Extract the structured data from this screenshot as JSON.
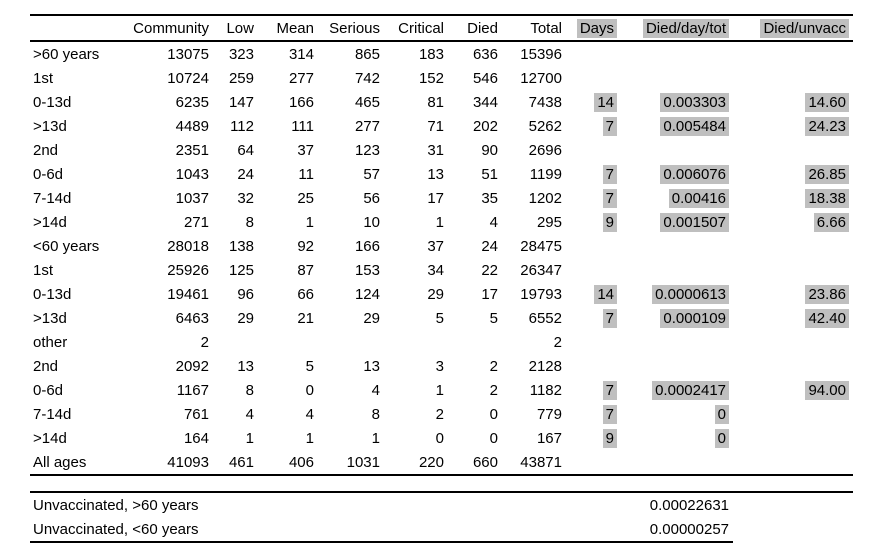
{
  "colors": {
    "highlight": "#bfbfbf",
    "border": "#000000",
    "background": "#ffffff",
    "text": "#000000"
  },
  "table": {
    "columns": [
      {
        "label": "",
        "highlighted": false
      },
      {
        "label": "Community",
        "highlighted": false
      },
      {
        "label": "Low",
        "highlighted": false
      },
      {
        "label": "Mean",
        "highlighted": false
      },
      {
        "label": "Serious",
        "highlighted": false
      },
      {
        "label": "Critical",
        "highlighted": false
      },
      {
        "label": "Died",
        "highlighted": false
      },
      {
        "label": "Total",
        "highlighted": false
      },
      {
        "label": "Days",
        "highlighted": true
      },
      {
        "label": "Died/day/tot",
        "highlighted": true
      },
      {
        "label": "Died/unvacc",
        "highlighted": true
      }
    ],
    "rows": [
      [
        ">60 years",
        "13075",
        "323",
        "314",
        "865",
        "183",
        "636",
        "15396",
        "",
        "",
        ""
      ],
      [
        "1st",
        "10724",
        "259",
        "277",
        "742",
        "152",
        "546",
        "12700",
        "",
        "",
        ""
      ],
      [
        "0-13d",
        "6235",
        "147",
        "166",
        "465",
        "81",
        "344",
        "7438",
        "14",
        "0.003303",
        "14.60"
      ],
      [
        ">13d",
        "4489",
        "112",
        "111",
        "277",
        "71",
        "202",
        "5262",
        "7",
        "0.005484",
        "24.23"
      ],
      [
        "2nd",
        "2351",
        "64",
        "37",
        "123",
        "31",
        "90",
        "2696",
        "",
        "",
        ""
      ],
      [
        "0-6d",
        "1043",
        "24",
        "11",
        "57",
        "13",
        "51",
        "1199",
        "7",
        "0.006076",
        "26.85"
      ],
      [
        "7-14d",
        "1037",
        "32",
        "25",
        "56",
        "17",
        "35",
        "1202",
        "7",
        "0.00416",
        "18.38"
      ],
      [
        ">14d",
        "271",
        "8",
        "1",
        "10",
        "1",
        "4",
        "295",
        "9",
        "0.001507",
        "6.66"
      ],
      [
        "<60 years",
        "28018",
        "138",
        "92",
        "166",
        "37",
        "24",
        "28475",
        "",
        "",
        ""
      ],
      [
        "1st",
        "25926",
        "125",
        "87",
        "153",
        "34",
        "22",
        "26347",
        "",
        "",
        ""
      ],
      [
        "0-13d",
        "19461",
        "96",
        "66",
        "124",
        "29",
        "17",
        "19793",
        "14",
        "0.0000613",
        "23.86"
      ],
      [
        ">13d",
        "6463",
        "29",
        "21",
        "29",
        "5",
        "5",
        "6552",
        "7",
        "0.000109",
        "42.40"
      ],
      [
        "other",
        "2",
        "",
        "",
        "",
        "",
        "",
        "2",
        "",
        "",
        ""
      ],
      [
        "2nd",
        "2092",
        "13",
        "5",
        "13",
        "3",
        "2",
        "2128",
        "",
        "",
        ""
      ],
      [
        "0-6d",
        "1167",
        "8",
        "0",
        "4",
        "1",
        "2",
        "1182",
        "7",
        "0.0002417",
        "94.00"
      ],
      [
        "7-14d",
        "761",
        "4",
        "4",
        "8",
        "2",
        "0",
        "779",
        "7",
        "0",
        ""
      ],
      [
        ">14d",
        "164",
        "1",
        "1",
        "1",
        "0",
        "0",
        "167",
        "9",
        "0",
        ""
      ],
      [
        "All ages",
        "41093",
        "461",
        "406",
        "1031",
        "220",
        "660",
        "43871",
        "",
        "",
        ""
      ]
    ]
  },
  "footer": {
    "rows": [
      {
        "label": "Unvaccinated, >60 years",
        "value": "0.00022631"
      },
      {
        "label": "Unvaccinated, <60 years",
        "value": "0.00000257"
      }
    ]
  }
}
